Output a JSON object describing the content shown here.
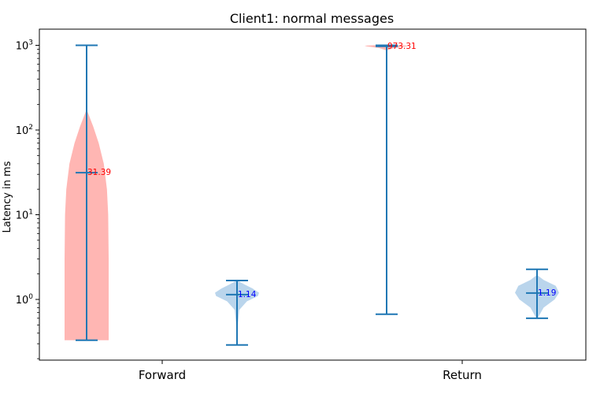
{
  "chart_data": {
    "type": "violin",
    "title": "Client1: normal messages",
    "xlabel": "",
    "ylabel": "Latency in ms",
    "yscale": "log",
    "ylim": [
      0.2,
      1500
    ],
    "categories": [
      "Forward",
      "Return"
    ],
    "y_ticks": [
      {
        "value": 1,
        "base": "10",
        "exp": "0"
      },
      {
        "value": 10,
        "base": "10",
        "exp": "1"
      },
      {
        "value": 100,
        "base": "10",
        "exp": "2"
      },
      {
        "value": 1000,
        "base": "10",
        "exp": "3"
      }
    ],
    "violins": [
      {
        "category": "Forward",
        "group": "a",
        "color": "#ff9d9a",
        "annotation_color": "#ff0000",
        "min": 0.33,
        "median": 31.39,
        "max": 1000,
        "median_label": "31.39",
        "profile": [
          [
            0.33,
            1.0
          ],
          [
            0.5,
            1.0
          ],
          [
            1,
            1.0
          ],
          [
            3,
            1.0
          ],
          [
            10,
            0.98
          ],
          [
            20,
            0.92
          ],
          [
            40,
            0.78
          ],
          [
            70,
            0.55
          ],
          [
            110,
            0.3
          ],
          [
            150,
            0.1
          ],
          [
            175,
            0.0
          ]
        ]
      },
      {
        "category": "Forward",
        "group": "b",
        "color": "#a3c7e6",
        "annotation_color": "#0000ff",
        "min": 0.29,
        "median": 1.14,
        "max": 1.67,
        "median_label": "1.14",
        "profile": [
          [
            0.3,
            0.02
          ],
          [
            0.5,
            0.04
          ],
          [
            0.75,
            0.1
          ],
          [
            0.95,
            0.45
          ],
          [
            1.1,
            0.95
          ],
          [
            1.2,
            1.0
          ],
          [
            1.35,
            0.7
          ],
          [
            1.5,
            0.35
          ],
          [
            1.65,
            0.05
          ]
        ]
      },
      {
        "category": "Return",
        "group": "a",
        "color": "#ff9d9a",
        "annotation_color": "#ff0000",
        "min": 0.67,
        "median": 973.31,
        "max": 1000,
        "median_label": "973.31",
        "profile": [
          [
            880,
            0.05
          ],
          [
            930,
            0.35
          ],
          [
            970,
            0.9
          ],
          [
            990,
            1.0
          ],
          [
            1000,
            0.7
          ],
          [
            1010,
            0.2
          ],
          [
            1020,
            0.0
          ]
        ]
      },
      {
        "category": "Return",
        "group": "b",
        "color": "#a3c7e6",
        "annotation_color": "#0000ff",
        "min": 0.6,
        "median": 1.19,
        "max": 2.27,
        "median_label": "1.19",
        "profile": [
          [
            0.6,
            0.03
          ],
          [
            0.8,
            0.3
          ],
          [
            1.0,
            0.8
          ],
          [
            1.2,
            1.0
          ],
          [
            1.45,
            0.85
          ],
          [
            1.7,
            0.3
          ],
          [
            1.9,
            0.05
          ]
        ]
      }
    ],
    "spread_color": "#1f77b4",
    "grid": false,
    "legend": "none"
  }
}
